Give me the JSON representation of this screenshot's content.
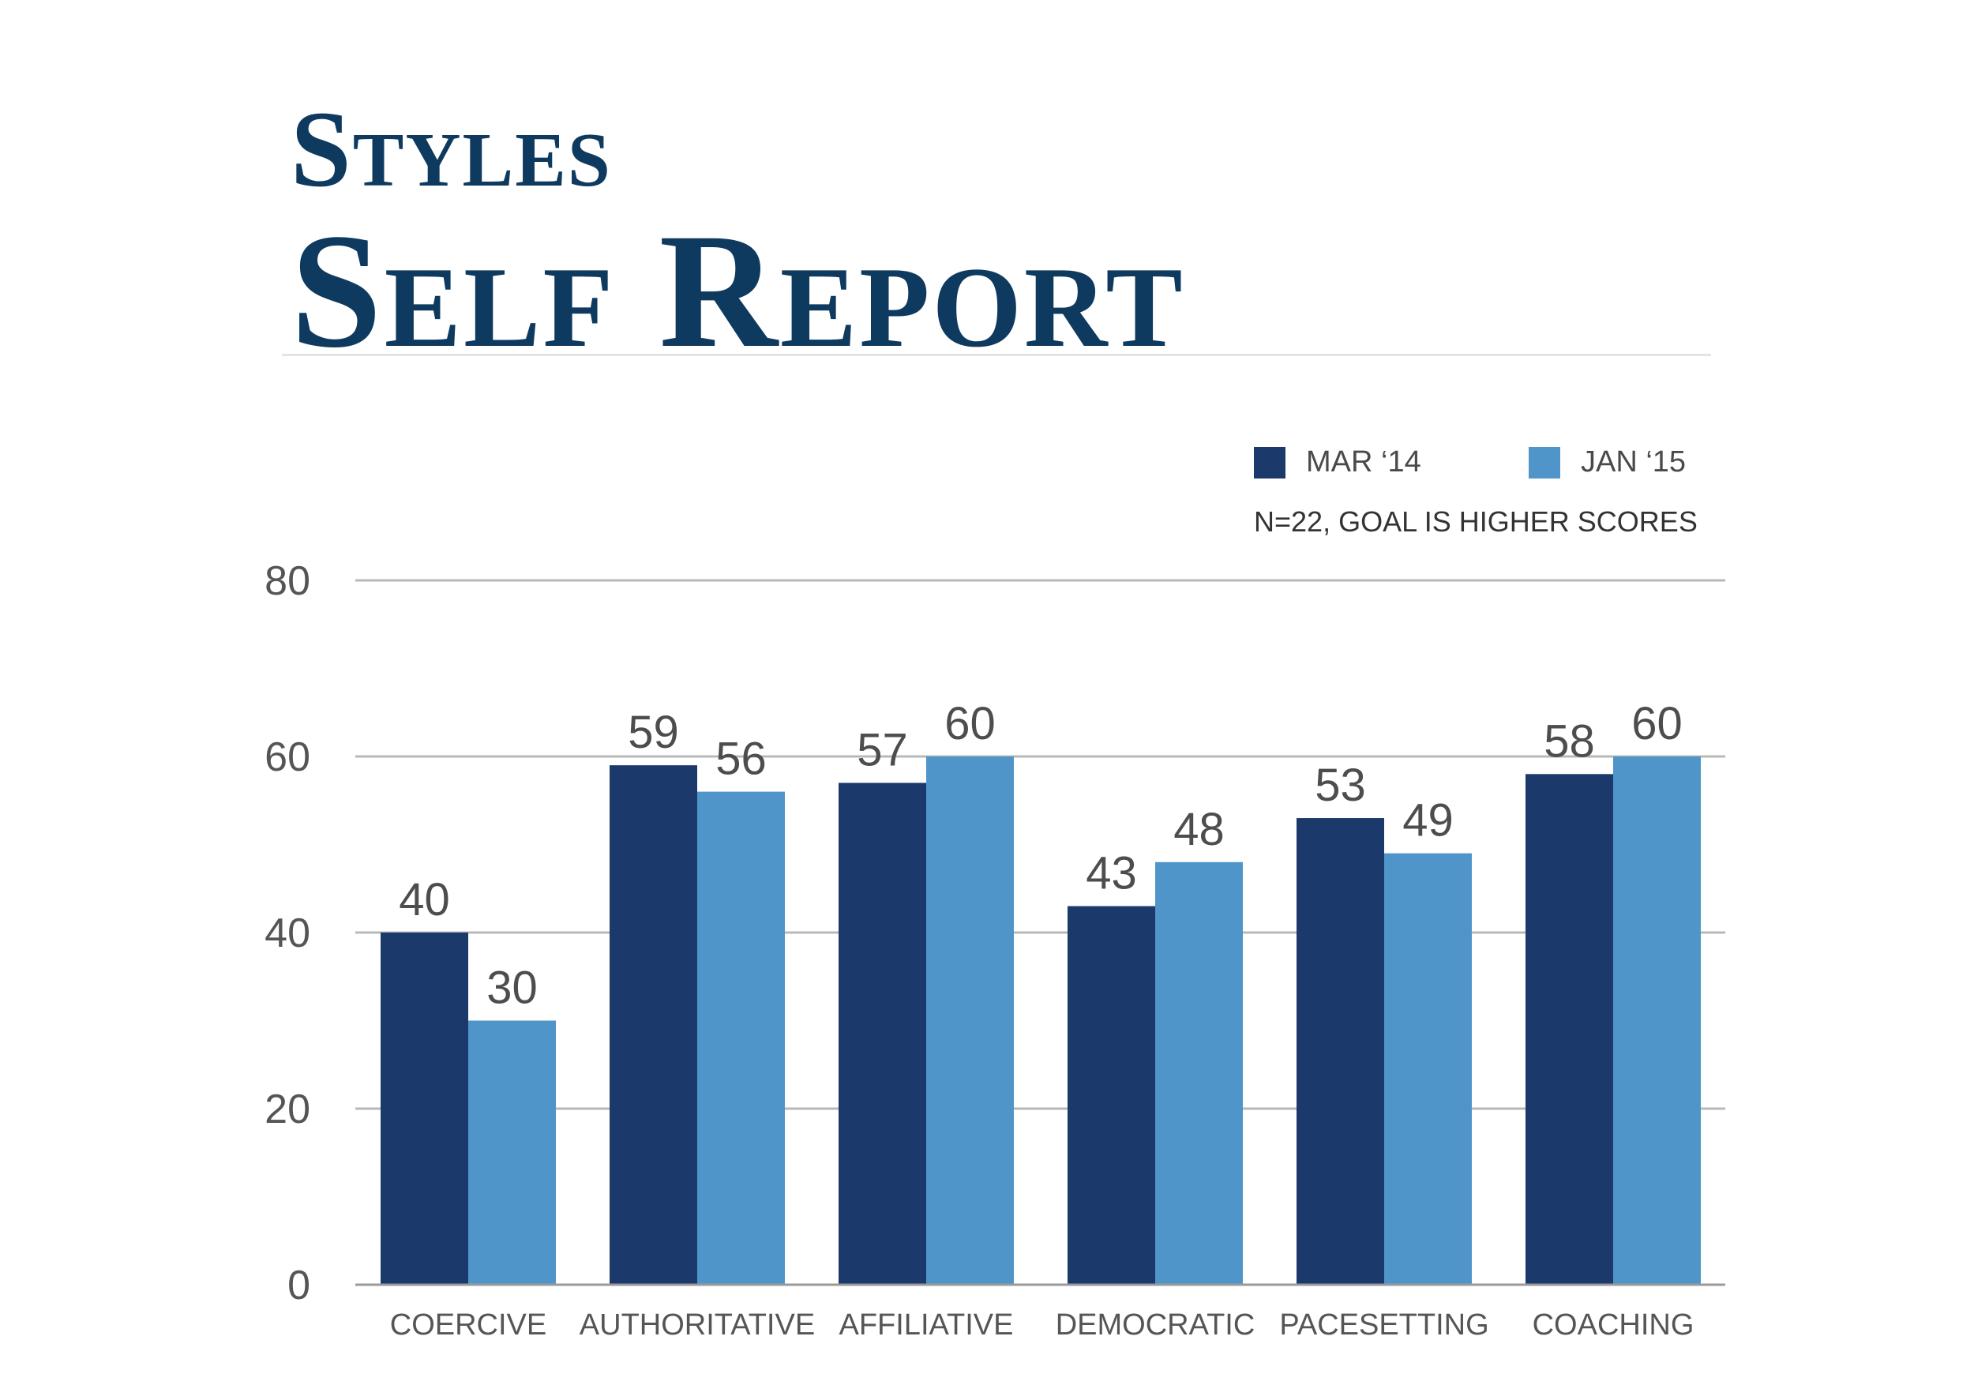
{
  "title": {
    "line1": "Styles",
    "line2": "Self Report"
  },
  "legend": [
    {
      "label": "MAR ‘14",
      "color": "#1b3a6b"
    },
    {
      "label": "JAN ‘15",
      "color": "#5095c9"
    }
  ],
  "note": "N=22, GOAL IS HIGHER SCORES",
  "chart_data": {
    "type": "bar",
    "categories": [
      "COERCIVE",
      "AUTHORITATIVE",
      "AFFILIATIVE",
      "DEMOCRATIC",
      "PACESETTING",
      "COACHING"
    ],
    "series": [
      {
        "name": "MAR ‘14",
        "values": [
          40,
          59,
          57,
          43,
          53,
          58
        ],
        "color": "#1b3a6b"
      },
      {
        "name": "JAN ‘15",
        "values": [
          30,
          56,
          60,
          48,
          49,
          60
        ],
        "color": "#5095c9"
      }
    ],
    "yticks": [
      "0",
      "20",
      "40",
      "60",
      "80"
    ],
    "ylim": [
      0,
      80
    ],
    "grid": true,
    "legend_position": "top-right",
    "data_labels": true
  }
}
